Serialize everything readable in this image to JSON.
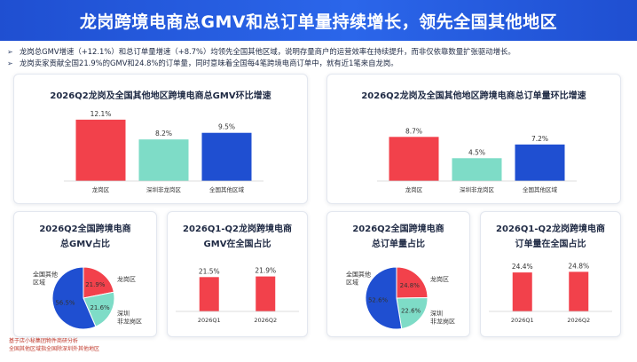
{
  "header": {
    "title": "龙岗跨境电商总GMV和总订单量持续增长，领先全国其他地区"
  },
  "bullets": [
    {
      "marker": "➢",
      "text": "龙岗总GMV增速（+12.1%）和总订单量增速（+8.7%）均领先全国其他区域，说明存量商户的运营效率在持续提升，而非仅依靠数量扩张驱动增长。"
    },
    {
      "marker": "➢",
      "text": "龙岗卖家贡献全国21.9%的GMV和24.8%的订单量，同时意味着全国每4笔跨境电商订单中，就有近1笔来自龙岗。"
    }
  ],
  "colors": {
    "red": "#f2414b",
    "teal": "#7edcc7",
    "blue": "#1f4fd1"
  },
  "chart_data": [
    {
      "type": "bar",
      "title": "2026Q2龙岗及全国其他地区跨境电商总GMV环比增速",
      "categories": [
        "龙岗区",
        "深圳非龙岗区",
        "全国其他区域"
      ],
      "values": [
        12.1,
        8.2,
        9.5
      ],
      "value_labels": [
        "12.1%",
        "8.2%",
        "9.5%"
      ],
      "colors": [
        "#f2414b",
        "#7edcc7",
        "#1f4fd1"
      ],
      "ylim": [
        0,
        14
      ]
    },
    {
      "type": "bar",
      "title": "2026Q2龙岗及全国其他地区跨境电商总订单量环比增速",
      "categories": [
        "龙岗区",
        "深圳非龙岗区",
        "全国其他区域"
      ],
      "values": [
        8.7,
        4.5,
        7.2
      ],
      "value_labels": [
        "8.7%",
        "4.5%",
        "7.2%"
      ],
      "colors": [
        "#f2414b",
        "#7edcc7",
        "#1f4fd1"
      ],
      "ylim": [
        0,
        14
      ]
    },
    {
      "type": "pie",
      "title_lines": [
        "2026Q2全国跨境电商",
        "总GMV占比"
      ],
      "slices": [
        {
          "label": "龙岗区",
          "value": 21.9,
          "value_label": "21.9%",
          "color": "#f2414b"
        },
        {
          "label": "深圳非龙岗区",
          "label_lines": [
            "深圳",
            "非龙岗区"
          ],
          "value": 21.6,
          "value_label": "21.6%",
          "color": "#7edcc7"
        },
        {
          "label": "全国其他区域",
          "label_lines": [
            "全国其他",
            "区域"
          ],
          "value": 56.5,
          "value_label": "56.5%",
          "color": "#1f4fd1"
        }
      ]
    },
    {
      "type": "bar",
      "title_lines": [
        "2026Q1-Q2龙岗跨境电商",
        "GMV在全国占比"
      ],
      "categories": [
        "2026Q1",
        "2026Q2"
      ],
      "values": [
        21.5,
        21.9
      ],
      "value_labels": [
        "21.5%",
        "21.9%"
      ],
      "colors": [
        "#f2414b",
        "#f2414b"
      ],
      "ylim": [
        0,
        40
      ]
    },
    {
      "type": "pie",
      "title_lines": [
        "2026Q2全国跨境电商",
        "总订单量占比"
      ],
      "slices": [
        {
          "label": "龙岗区",
          "value": 24.8,
          "value_label": "24.8%",
          "color": "#f2414b"
        },
        {
          "label": "深圳非龙岗区",
          "label_lines": [
            "深圳",
            "非龙岗区"
          ],
          "value": 22.6,
          "value_label": "22.6%",
          "color": "#7edcc7"
        },
        {
          "label": "全国其他区域",
          "label_lines": [
            "全国其他",
            "区域"
          ],
          "value": 52.6,
          "value_label": "52.6%",
          "color": "#1f4fd1"
        }
      ]
    },
    {
      "type": "bar",
      "title_lines": [
        "2026Q1-Q2龙岗跨境电商",
        "订单量在全国占比"
      ],
      "categories": [
        "2026Q1",
        "2026Q2"
      ],
      "values": [
        24.4,
        24.8
      ],
      "value_labels": [
        "24.4%",
        "24.8%"
      ],
      "colors": [
        "#f2414b",
        "#f2414b"
      ],
      "ylim": [
        0,
        40
      ]
    }
  ],
  "footnotes": [
    "基于店小秘集团物件商研分析",
    "全国其他区域指全国除深圳外其他地区"
  ]
}
